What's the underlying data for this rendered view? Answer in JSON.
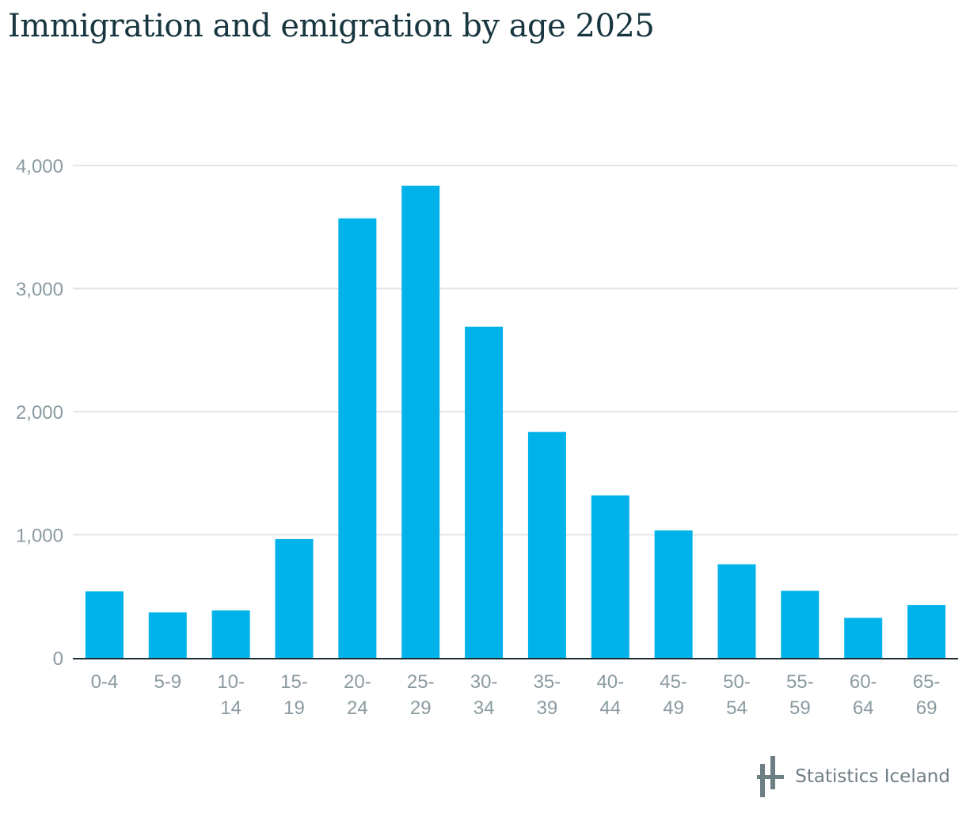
{
  "title": "Immigration and emigration by age 2025",
  "source_label": "Statistics Iceland",
  "colors": {
    "bar": "#00b2ea",
    "grid": "#e3e6e8",
    "axis": "#1c2e33",
    "title": "#17363f",
    "tick": "#8a9aa1"
  },
  "chart_data": {
    "type": "bar",
    "title": "Immigration and emigration by age 2025",
    "categories": [
      [
        "0-4"
      ],
      [
        "5-9"
      ],
      [
        "10-",
        "14"
      ],
      [
        "15-",
        "19"
      ],
      [
        "20-",
        "24"
      ],
      [
        "25-",
        "29"
      ],
      [
        "30-",
        "34"
      ],
      [
        "35-",
        "39"
      ],
      [
        "40-",
        "44"
      ],
      [
        "45-",
        "49"
      ],
      [
        "50-",
        "54"
      ],
      [
        "55-",
        "59"
      ],
      [
        "60-",
        "64"
      ],
      [
        "65-",
        "69"
      ]
    ],
    "values": [
      540,
      370,
      385,
      965,
      3570,
      3835,
      2690,
      1835,
      1320,
      1035,
      760,
      545,
      325,
      430
    ],
    "y_ticks": [
      "0",
      "1,000",
      "2,000",
      "3,000",
      "4,000"
    ],
    "ylim": [
      0,
      4000
    ],
    "grid": true,
    "legend": "none"
  }
}
